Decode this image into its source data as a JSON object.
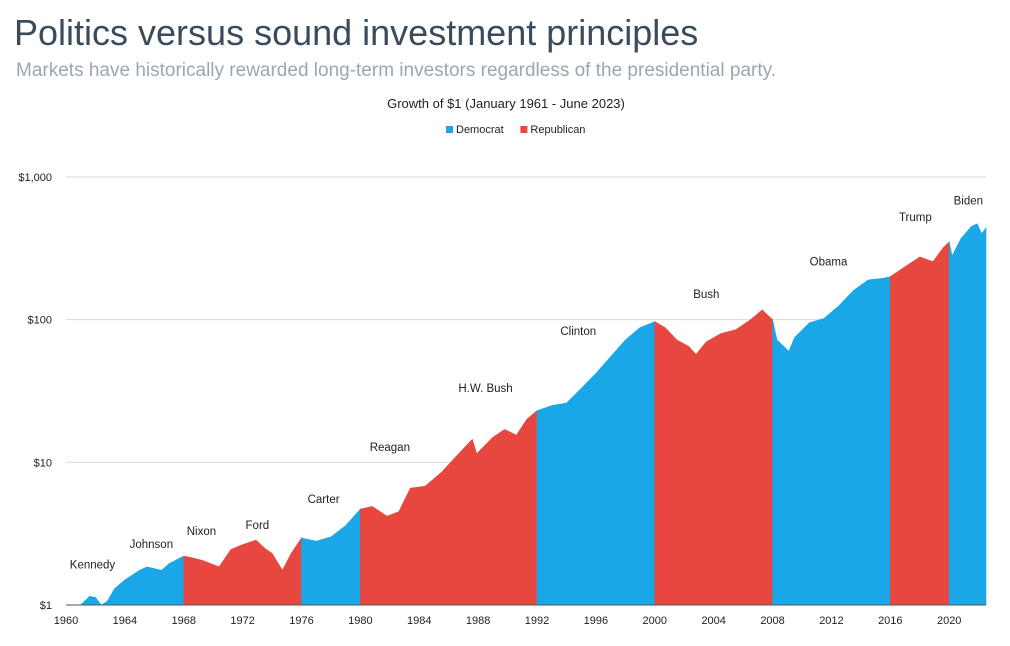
{
  "header": {
    "title": "Politics versus sound investment principles",
    "subtitle": "Markets have historically rewarded long-term investors regardless of the presidential party."
  },
  "chart_data": {
    "type": "area",
    "title": "Growth of $1 (January 1961 - June 2023)",
    "xlabel": "",
    "ylabel": "",
    "yscale": "log",
    "xlim": [
      1960,
      2022.5
    ],
    "ylim": [
      1,
      1000
    ],
    "x_ticks": [
      "1960",
      "1964",
      "1968",
      "1972",
      "1976",
      "1980",
      "1984",
      "1988",
      "1992",
      "1996",
      "2000",
      "2004",
      "2008",
      "2012",
      "2016",
      "2020"
    ],
    "y_ticks": [
      {
        "value": 1,
        "label": "$1"
      },
      {
        "value": 10,
        "label": "$10"
      },
      {
        "value": 100,
        "label": "$100"
      },
      {
        "value": 1000,
        "label": "$1,000"
      }
    ],
    "grid": true,
    "legend_position": "top-center",
    "series": [
      {
        "name": "Democrat",
        "color": "#1aa7e8"
      },
      {
        "name": "Republican",
        "color": "#e8473f"
      }
    ],
    "terms": [
      {
        "president": "Kennedy",
        "party": "Democrat",
        "start": 1960,
        "end": 1968
      },
      {
        "president": "Johnson",
        "party": "Democrat",
        "start": 1960,
        "end": 1968
      },
      {
        "president": "Nixon",
        "party": "Republican",
        "start": 1968,
        "end": 1976
      },
      {
        "president": "Ford",
        "party": "Republican",
        "start": 1968,
        "end": 1976
      },
      {
        "president": "Carter",
        "party": "Democrat",
        "start": 1976,
        "end": 1980
      },
      {
        "president": "Reagan",
        "party": "Republican",
        "start": 1980,
        "end": 1992
      },
      {
        "president": "H.W. Bush",
        "party": "Republican",
        "start": 1980,
        "end": 1992
      },
      {
        "president": "Clinton",
        "party": "Democrat",
        "start": 1992,
        "end": 2000
      },
      {
        "president": "Bush",
        "party": "Republican",
        "start": 2000,
        "end": 2008
      },
      {
        "president": "Obama",
        "party": "Democrat",
        "start": 2008,
        "end": 2016
      },
      {
        "president": "Trump",
        "party": "Republican",
        "start": 2016,
        "end": 2020
      },
      {
        "president": "Biden",
        "party": "Democrat",
        "start": 2020,
        "end": 2022.5
      }
    ],
    "annotations": [
      {
        "text": "Kennedy",
        "x": 1961.8,
        "y": 1.8
      },
      {
        "text": "Johnson",
        "x": 1965.8,
        "y": 2.5
      },
      {
        "text": "Nixon",
        "x": 1969.2,
        "y": 3.1
      },
      {
        "text": "Ford",
        "x": 1973.0,
        "y": 3.4
      },
      {
        "text": "Carter",
        "x": 1977.5,
        "y": 5.2
      },
      {
        "text": "Reagan",
        "x": 1982.0,
        "y": 12
      },
      {
        "text": "H.W. Bush",
        "x": 1988.5,
        "y": 31
      },
      {
        "text": "Clinton",
        "x": 1994.8,
        "y": 78
      },
      {
        "text": "Bush",
        "x": 2003.5,
        "y": 142
      },
      {
        "text": "Obama",
        "x": 2011.8,
        "y": 240
      },
      {
        "text": "Trump",
        "x": 2017.7,
        "y": 490
      },
      {
        "text": "Biden",
        "x": 2021.3,
        "y": 640
      }
    ],
    "points": [
      {
        "x": 1961.0,
        "y": 1.0
      },
      {
        "x": 1961.6,
        "y": 1.15
      },
      {
        "x": 1962.0,
        "y": 1.13
      },
      {
        "x": 1962.4,
        "y": 0.98
      },
      {
        "x": 1962.8,
        "y": 1.06
      },
      {
        "x": 1963.3,
        "y": 1.3
      },
      {
        "x": 1964.0,
        "y": 1.5
      },
      {
        "x": 1965.0,
        "y": 1.75
      },
      {
        "x": 1965.5,
        "y": 1.85
      },
      {
        "x": 1966.5,
        "y": 1.75
      },
      {
        "x": 1967.0,
        "y": 1.95
      },
      {
        "x": 1968.0,
        "y": 2.2
      },
      {
        "x": 1968.5,
        "y": 2.15
      },
      {
        "x": 1969.3,
        "y": 2.05
      },
      {
        "x": 1970.4,
        "y": 1.85
      },
      {
        "x": 1971.2,
        "y": 2.45
      },
      {
        "x": 1972.0,
        "y": 2.65
      },
      {
        "x": 1972.9,
        "y": 2.85
      },
      {
        "x": 1973.5,
        "y": 2.5
      },
      {
        "x": 1974.0,
        "y": 2.3
      },
      {
        "x": 1974.7,
        "y": 1.75
      },
      {
        "x": 1975.3,
        "y": 2.3
      },
      {
        "x": 1976.0,
        "y": 2.95
      },
      {
        "x": 1977.0,
        "y": 2.8
      },
      {
        "x": 1978.0,
        "y": 3.0
      },
      {
        "x": 1979.0,
        "y": 3.6
      },
      {
        "x": 1980.0,
        "y": 4.7
      },
      {
        "x": 1980.8,
        "y": 4.9
      },
      {
        "x": 1981.8,
        "y": 4.2
      },
      {
        "x": 1982.6,
        "y": 4.5
      },
      {
        "x": 1983.4,
        "y": 6.6
      },
      {
        "x": 1984.4,
        "y": 6.8
      },
      {
        "x": 1985.5,
        "y": 8.5
      },
      {
        "x": 1986.5,
        "y": 11.0
      },
      {
        "x": 1987.6,
        "y": 14.5
      },
      {
        "x": 1987.9,
        "y": 11.5
      },
      {
        "x": 1989.0,
        "y": 15.0
      },
      {
        "x": 1989.8,
        "y": 17.0
      },
      {
        "x": 1990.6,
        "y": 15.5
      },
      {
        "x": 1991.3,
        "y": 20.0
      },
      {
        "x": 1992.0,
        "y": 23.0
      },
      {
        "x": 1993.0,
        "y": 25.0
      },
      {
        "x": 1994.0,
        "y": 26.0
      },
      {
        "x": 1995.0,
        "y": 33.0
      },
      {
        "x": 1996.0,
        "y": 42.0
      },
      {
        "x": 1997.0,
        "y": 55.0
      },
      {
        "x": 1998.0,
        "y": 72.0
      },
      {
        "x": 1999.0,
        "y": 88.0
      },
      {
        "x": 2000.0,
        "y": 97.0
      },
      {
        "x": 2000.7,
        "y": 88.0
      },
      {
        "x": 2001.5,
        "y": 72.0
      },
      {
        "x": 2002.3,
        "y": 65.0
      },
      {
        "x": 2002.8,
        "y": 57.0
      },
      {
        "x": 2003.5,
        "y": 70.0
      },
      {
        "x": 2004.5,
        "y": 80.0
      },
      {
        "x": 2005.5,
        "y": 85.0
      },
      {
        "x": 2006.5,
        "y": 100.0
      },
      {
        "x": 2007.3,
        "y": 117.0
      },
      {
        "x": 2008.0,
        "y": 100.0
      },
      {
        "x": 2008.3,
        "y": 72.0
      },
      {
        "x": 2009.1,
        "y": 60.0
      },
      {
        "x": 2009.5,
        "y": 75.0
      },
      {
        "x": 2010.5,
        "y": 95.0
      },
      {
        "x": 2011.5,
        "y": 102.0
      },
      {
        "x": 2012.5,
        "y": 125.0
      },
      {
        "x": 2013.5,
        "y": 160.0
      },
      {
        "x": 2014.5,
        "y": 190.0
      },
      {
        "x": 2015.5,
        "y": 195.0
      },
      {
        "x": 2016.0,
        "y": 200.0
      },
      {
        "x": 2017.0,
        "y": 235.0
      },
      {
        "x": 2018.0,
        "y": 275.0
      },
      {
        "x": 2018.9,
        "y": 255.0
      },
      {
        "x": 2019.6,
        "y": 320.0
      },
      {
        "x": 2020.0,
        "y": 350.0
      },
      {
        "x": 2020.2,
        "y": 280.0
      },
      {
        "x": 2020.8,
        "y": 370.0
      },
      {
        "x": 2021.5,
        "y": 450.0
      },
      {
        "x": 2021.9,
        "y": 470.0
      },
      {
        "x": 2022.2,
        "y": 400.0
      },
      {
        "x": 2022.5,
        "y": 440.0
      }
    ]
  }
}
